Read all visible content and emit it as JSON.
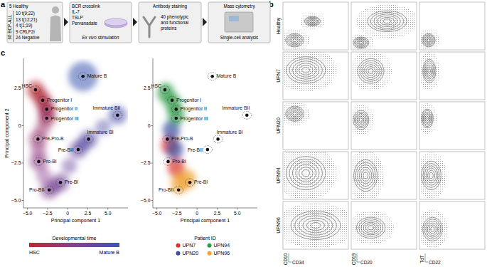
{
  "figure": {
    "panel_labels": [
      "a",
      "b",
      "c"
    ],
    "a": {
      "cohort": {
        "healthy": "5 Healthy",
        "total": "60 BCP-ALL",
        "subtypes": [
          "10 t(9;22)",
          "13 t(12;21)",
          "4 t(1;19)",
          "9 CRLF2r",
          "24 Negative"
        ]
      },
      "stimulation": {
        "title": "Ex vivo stimulation",
        "items": [
          "BCR crosslink",
          "IL-7",
          "TSLP",
          "Pervanadate"
        ]
      },
      "staining": {
        "title": "Antibody staining",
        "text": "40 phenotypic and functional proteins"
      },
      "acquisition": {
        "title": "Mass cytometry",
        "text": "Single-cell analysis"
      }
    },
    "b": {
      "rows": [
        "Healthy",
        "UPN7",
        "UPN20",
        "UPN94",
        "UPN96"
      ],
      "columns": [
        {
          "x_label": "CD34",
          "y_label": "CD10"
        },
        {
          "x_label": "CD20",
          "y_label": "CD19"
        },
        {
          "x_label": "CD22",
          "y_label": "TdT"
        }
      ],
      "density": [
        [
          [
            [
              0.18,
              0.2,
              0.14,
              0.14
            ],
            [
              0.45,
              0.6,
              0.12,
              0.1
            ]
          ],
          [
            [
              0.15,
              0.15,
              0.12,
              0.12
            ],
            [
              0.55,
              0.6,
              0.3,
              0.22
            ]
          ],
          [
            [
              0.14,
              0.2,
              0.1,
              0.14
            ]
          ]
        ],
        [
          [
            [
              0.35,
              0.62,
              0.3,
              0.28
            ]
          ],
          [
            [
              0.3,
              0.6,
              0.2,
              0.26
            ]
          ],
          [
            [
              0.15,
              0.6,
              0.1,
              0.25
            ]
          ]
        ],
        [
          [
            [
              0.18,
              0.75,
              0.14,
              0.16
            ]
          ],
          [
            [
              0.15,
              0.62,
              0.12,
              0.2
            ]
          ],
          [
            [
              0.12,
              0.65,
              0.09,
              0.2
            ]
          ]
        ],
        [
          [
            [
              0.35,
              0.55,
              0.3,
              0.35
            ]
          ],
          [
            [
              0.22,
              0.5,
              0.18,
              0.33
            ]
          ],
          [
            [
              0.18,
              0.5,
              0.15,
              0.3
            ]
          ]
        ],
        [
          [
            [
              0.5,
              0.5,
              0.38,
              0.3
            ]
          ],
          [
            [
              0.3,
              0.45,
              0.22,
              0.22
            ]
          ],
          [
            [
              0.2,
              0.42,
              0.15,
              0.25
            ]
          ]
        ]
      ]
    }
  },
  "chart_data": [
    {
      "type": "scatter",
      "x_label": "Principal component 1",
      "y_label": "Principal component 2",
      "xlim": [
        -5.5,
        7.5
      ],
      "ylim": [
        -5.5,
        4.5
      ],
      "xticks": [
        {
          "value": -5,
          "label": "−5.0"
        },
        {
          "value": -2.5,
          "label": "−2.5"
        },
        0,
        2.5,
        {
          "value": 5,
          "label": "5.0"
        }
      ],
      "yticks": [
        {
          "value": -5,
          "label": "−5.0"
        },
        {
          "value": -2.5,
          "label": "−2.5"
        },
        0,
        2.5
      ],
      "labels": [
        "HSC",
        "Progenitor I",
        "Progenitor II",
        "Progenitor III",
        "Pre-Pro-B",
        "Pro-BI",
        "Pro-BII",
        "Pre-BI",
        "Pre-BII",
        "Immature BI",
        "Immature BII",
        "Mature B"
      ],
      "x": [
        -4.0,
        -3.1,
        -2.6,
        -2.6,
        -3.7,
        -3.6,
        -2.3,
        -0.9,
        1.3,
        2.6,
        6.2,
        1.9
      ],
      "values": [
        2.4,
        1.7,
        1.1,
        0.5,
        -0.9,
        -2.4,
        -4.3,
        -3.8,
        -1.6,
        -0.9,
        0.7,
        3.3
      ],
      "marker": "circle",
      "color": "#111111",
      "colorbar": {
        "title": "Developmental time",
        "labels": [
          "HSC",
          "Mature B"
        ],
        "colors": [
          "#b8282e",
          "#8a3f8f",
          "#3a55b0"
        ]
      }
    },
    {
      "type": "scatter",
      "x_label": "Principal component 1",
      "xlim": [
        -5.5,
        7.5
      ],
      "ylim": [
        -5.5,
        4.5
      ],
      "xticks": [
        {
          "value": -5,
          "label": "−5.0"
        },
        {
          "value": -2.5,
          "label": "−2.5"
        },
        0,
        2.5,
        {
          "value": 5,
          "label": "5.0"
        }
      ],
      "yticks": [
        {
          "value": -5,
          "label": "−5.0"
        },
        {
          "value": -2.5,
          "label": "−2.5"
        },
        0,
        2.5
      ],
      "labels": [
        "HSC",
        "Progenitor I",
        "Progenitor II",
        "Progenitor III",
        "Pre-Pro-B",
        "Pro-BI",
        "Pro-BII",
        "Pre-BI",
        "Pre-BII",
        "Immature BI",
        "Immature BII",
        "Mature B"
      ],
      "x": [
        -4.0,
        -3.1,
        -2.6,
        -2.6,
        -3.7,
        -3.6,
        -2.3,
        -0.9,
        1.3,
        2.6,
        6.2,
        1.9
      ],
      "values": [
        2.4,
        1.7,
        1.1,
        0.5,
        -0.9,
        -2.4,
        -4.3,
        -3.8,
        -1.6,
        -0.9,
        0.7,
        3.3
      ],
      "marker": "circle",
      "color": "#111111",
      "legend_title": "Patient ID",
      "series": [
        {
          "name": "UPN7",
          "color": "#d8352a",
          "x": [
            -3.4,
            -2.6
          ],
          "values": [
            -1.3,
            -2.8
          ]
        },
        {
          "name": "UPN20",
          "color": "#3a4fa0",
          "x": [
            -3.2,
            -2.8
          ],
          "values": [
            -0.3,
            -1.6
          ]
        },
        {
          "name": "UPN94",
          "color": "#2e9a48",
          "x": [
            -3.9,
            -3.0,
            -2.6
          ],
          "values": [
            2.2,
            1.5,
            0.7
          ]
        },
        {
          "name": "UPN96",
          "color": "#f0a030",
          "x": [
            -2.2,
            -1.2
          ],
          "values": [
            -3.9,
            -3.6
          ]
        }
      ]
    }
  ]
}
